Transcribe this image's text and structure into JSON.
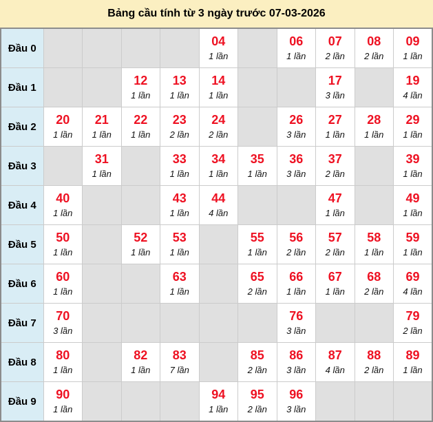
{
  "title": "Bảng cầu tính từ 3 ngày trước 07-03-2026",
  "colors": {
    "title_bg": "#FBEFC1",
    "label_bg": "#D9EDF5",
    "empty_bg": "#E0E0E0",
    "filled_bg": "#FFFFFF",
    "number_red": "#EE1122",
    "count_text": "#111111",
    "border_outer": "#8C8C8C",
    "border_inner": "#CBCBCB"
  },
  "table": {
    "rows": [
      {
        "label": "Đầu 0",
        "cells": [
          null,
          null,
          null,
          null,
          {
            "number": "04",
            "count": "1 lần"
          },
          null,
          {
            "number": "06",
            "count": "1 lần"
          },
          {
            "number": "07",
            "count": "2 lần"
          },
          {
            "number": "08",
            "count": "2 lần"
          },
          {
            "number": "09",
            "count": "1 lần"
          }
        ]
      },
      {
        "label": "Đầu 1",
        "cells": [
          null,
          null,
          {
            "number": "12",
            "count": "1 lần"
          },
          {
            "number": "13",
            "count": "1 lần"
          },
          {
            "number": "14",
            "count": "1 lần"
          },
          null,
          null,
          {
            "number": "17",
            "count": "3 lần"
          },
          null,
          {
            "number": "19",
            "count": "4 lần"
          }
        ]
      },
      {
        "label": "Đầu 2",
        "cells": [
          {
            "number": "20",
            "count": "1 lần"
          },
          {
            "number": "21",
            "count": "1 lần"
          },
          {
            "number": "22",
            "count": "1 lần"
          },
          {
            "number": "23",
            "count": "2 lần"
          },
          {
            "number": "24",
            "count": "2 lần"
          },
          null,
          {
            "number": "26",
            "count": "3 lần"
          },
          {
            "number": "27",
            "count": "1 lần"
          },
          {
            "number": "28",
            "count": "1 lần"
          },
          {
            "number": "29",
            "count": "1 lần"
          }
        ]
      },
      {
        "label": "Đầu 3",
        "cells": [
          null,
          {
            "number": "31",
            "count": "1 lần"
          },
          null,
          {
            "number": "33",
            "count": "1 lần"
          },
          {
            "number": "34",
            "count": "1 lần"
          },
          {
            "number": "35",
            "count": "1 lần"
          },
          {
            "number": "36",
            "count": "3 lần"
          },
          {
            "number": "37",
            "count": "2 lần"
          },
          null,
          {
            "number": "39",
            "count": "1 lần"
          }
        ]
      },
      {
        "label": "Đầu 4",
        "cells": [
          {
            "number": "40",
            "count": "1 lần"
          },
          null,
          null,
          {
            "number": "43",
            "count": "1 lần"
          },
          {
            "number": "44",
            "count": "4 lần"
          },
          null,
          null,
          {
            "number": "47",
            "count": "1 lần"
          },
          null,
          {
            "number": "49",
            "count": "1 lần"
          }
        ]
      },
      {
        "label": "Đầu 5",
        "cells": [
          {
            "number": "50",
            "count": "1 lần"
          },
          null,
          {
            "number": "52",
            "count": "1 lần"
          },
          {
            "number": "53",
            "count": "1 lần"
          },
          null,
          {
            "number": "55",
            "count": "1 lần"
          },
          {
            "number": "56",
            "count": "2 lần"
          },
          {
            "number": "57",
            "count": "2 lần"
          },
          {
            "number": "58",
            "count": "1 lần"
          },
          {
            "number": "59",
            "count": "1 lần"
          }
        ]
      },
      {
        "label": "Đầu 6",
        "cells": [
          {
            "number": "60",
            "count": "1 lần"
          },
          null,
          null,
          {
            "number": "63",
            "count": "1 lần"
          },
          null,
          {
            "number": "65",
            "count": "2 lần"
          },
          {
            "number": "66",
            "count": "1 lần"
          },
          {
            "number": "67",
            "count": "1 lần"
          },
          {
            "number": "68",
            "count": "2 lần"
          },
          {
            "number": "69",
            "count": "4 lần"
          }
        ]
      },
      {
        "label": "Đầu 7",
        "cells": [
          {
            "number": "70",
            "count": "3 lần"
          },
          null,
          null,
          null,
          null,
          null,
          {
            "number": "76",
            "count": "3 lần"
          },
          null,
          null,
          {
            "number": "79",
            "count": "2 lần"
          }
        ]
      },
      {
        "label": "Đầu 8",
        "cells": [
          {
            "number": "80",
            "count": "1 lần"
          },
          null,
          {
            "number": "82",
            "count": "1 lần"
          },
          {
            "number": "83",
            "count": "7 lần"
          },
          null,
          {
            "number": "85",
            "count": "2 lần"
          },
          {
            "number": "86",
            "count": "3 lần"
          },
          {
            "number": "87",
            "count": "4 lần"
          },
          {
            "number": "88",
            "count": "2 lần"
          },
          {
            "number": "89",
            "count": "1 lần"
          }
        ]
      },
      {
        "label": "Đầu 9",
        "cells": [
          {
            "number": "90",
            "count": "1 lần"
          },
          null,
          null,
          null,
          {
            "number": "94",
            "count": "1 lần"
          },
          {
            "number": "95",
            "count": "2 lần"
          },
          {
            "number": "96",
            "count": "3 lần"
          },
          null,
          null,
          null
        ]
      }
    ]
  }
}
